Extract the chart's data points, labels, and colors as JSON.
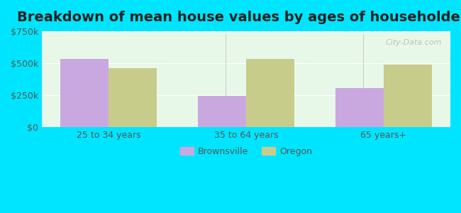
{
  "title": "Breakdown of mean house values by ages of householders",
  "categories": [
    "25 to 34 years",
    "35 to 64 years",
    "65 years+"
  ],
  "brownsville_values": [
    535000,
    245000,
    305000
  ],
  "oregon_values": [
    460000,
    535000,
    490000
  ],
  "brownsville_color": "#c9a8e0",
  "oregon_color": "#c8cc8a",
  "bar_width": 0.35,
  "ylim": [
    0,
    750000
  ],
  "yticks": [
    0,
    250000,
    500000,
    750000
  ],
  "ytick_labels": [
    "$0",
    "$250k",
    "$500k",
    "$750k"
  ],
  "background_color": "#e0fafa",
  "plot_bg_color": "#e8f8e8",
  "outer_bg_color": "#00e5ff",
  "title_fontsize": 14,
  "legend_labels": [
    "Brownsville",
    "Oregon"
  ],
  "watermark": "City-Data.com"
}
